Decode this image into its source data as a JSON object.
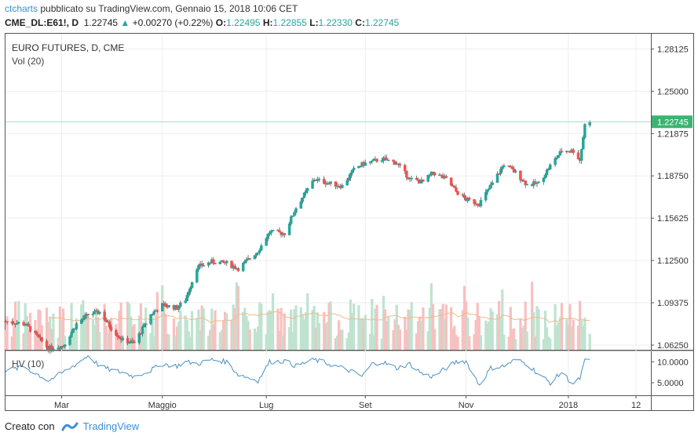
{
  "header": {
    "author": "ctcharts",
    "published": "pubblicato su TradingView.com, Gennaio 15, 2018 10:06 CET",
    "symbol": "CME_DL:E61!, D",
    "last": "1.22745",
    "change_arrow": "▲",
    "change": "+0.00270 (+0.22%)",
    "o_label": "O:",
    "o_value": "1.22495",
    "h_label": "H:",
    "h_value": "1.22855",
    "l_label": "L:",
    "l_value": "1.22330",
    "c_label": "C:",
    "c_value": "1.22745"
  },
  "legend": {
    "title": "EURO FUTURES, D, CME",
    "volume": "Vol (20)",
    "hv": "HV (10)"
  },
  "footer": {
    "created_with": "Creato con",
    "brand": "TradingView"
  },
  "colors": {
    "up": "#26a69a",
    "down": "#ef5350",
    "up_vol": "#bfe3cf",
    "down_vol": "#f8c0c0",
    "ma": "#f0b98a",
    "hv": "#4a90c0",
    "last_price_bg": "#3cb371",
    "grid": "#eeeeee"
  },
  "chart_data": {
    "type": "candlestick",
    "price_axis": {
      "min": 1.059,
      "max": 1.2925,
      "ticks": [
        "1.28125",
        "1.25000",
        "1.21875",
        "1.18750",
        "1.15625",
        "1.12500",
        "1.09375",
        "1.06250"
      ],
      "last_label": "1.22745"
    },
    "time_axis": {
      "labels": [
        {
          "text": "Mar",
          "date": "2017-03-01"
        },
        {
          "text": "Maggio",
          "date": "2017-05-01"
        },
        {
          "text": "Lug",
          "date": "2017-07-03"
        },
        {
          "text": "Set",
          "date": "2017-09-01"
        },
        {
          "text": "Nov",
          "date": "2017-11-01"
        },
        {
          "text": "2018",
          "date": "2018-01-02"
        },
        {
          "text": "12",
          "date": "2018-02-12"
        }
      ],
      "start": "2017-01-26",
      "end": "2018-02-21"
    },
    "price_path": [
      [
        "2017-01-26",
        1.08
      ],
      [
        "2017-02-07",
        1.078
      ],
      [
        "2017-02-21",
        1.06
      ],
      [
        "2017-03-02",
        1.062
      ],
      [
        "2017-03-10",
        1.078
      ],
      [
        "2017-03-17",
        1.085
      ],
      [
        "2017-03-24",
        1.087
      ],
      [
        "2017-03-31",
        1.075
      ],
      [
        "2017-04-07",
        1.066
      ],
      [
        "2017-04-14",
        1.064
      ],
      [
        "2017-04-24",
        1.085
      ],
      [
        "2017-05-01",
        1.092
      ],
      [
        "2017-05-10",
        1.09
      ],
      [
        "2017-05-15",
        1.096
      ],
      [
        "2017-05-22",
        1.12
      ],
      [
        "2017-05-31",
        1.124
      ],
      [
        "2017-06-09",
        1.123
      ],
      [
        "2017-06-16",
        1.119
      ],
      [
        "2017-06-28",
        1.132
      ],
      [
        "2017-07-05",
        1.146
      ],
      [
        "2017-07-14",
        1.145
      ],
      [
        "2017-07-21",
        1.164
      ],
      [
        "2017-08-01",
        1.185
      ],
      [
        "2017-08-10",
        1.182
      ],
      [
        "2017-08-18",
        1.18
      ],
      [
        "2017-08-25",
        1.192
      ],
      [
        "2017-08-30",
        1.196
      ],
      [
        "2017-09-05",
        1.198
      ],
      [
        "2017-09-11",
        1.2
      ],
      [
        "2017-09-20",
        1.197
      ],
      [
        "2017-09-28",
        1.185
      ],
      [
        "2017-10-06",
        1.183
      ],
      [
        "2017-10-12",
        1.19
      ],
      [
        "2017-10-20",
        1.185
      ],
      [
        "2017-10-26",
        1.176
      ],
      [
        "2017-11-01",
        1.17
      ],
      [
        "2017-11-09",
        1.167
      ],
      [
        "2017-11-16",
        1.18
      ],
      [
        "2017-11-24",
        1.196
      ],
      [
        "2017-12-01",
        1.19
      ],
      [
        "2017-12-08",
        1.181
      ],
      [
        "2017-12-15",
        1.182
      ],
      [
        "2017-12-22",
        1.195
      ],
      [
        "2017-12-29",
        1.206
      ],
      [
        "2018-01-05",
        1.206
      ],
      [
        "2018-01-09",
        1.199
      ],
      [
        "2018-01-12",
        1.225
      ],
      [
        "2018-01-15",
        1.22745
      ]
    ],
    "ohlc_last": {
      "open": 1.22495,
      "high": 1.22855,
      "low": 1.2233,
      "close": 1.22745
    },
    "volume_axis": {
      "max": 100,
      "ma_period": 20
    },
    "hv": {
      "ticks": [
        "10.0000",
        "5.0000"
      ],
      "min": 2.0,
      "max": 12.5,
      "path": [
        [
          "2017-01-26",
          8.0
        ],
        [
          "2017-02-07",
          8.7
        ],
        [
          "2017-02-21",
          5.5
        ],
        [
          "2017-03-02",
          7.5
        ],
        [
          "2017-03-10",
          9.5
        ],
        [
          "2017-03-17",
          11.5
        ],
        [
          "2017-03-24",
          9.0
        ],
        [
          "2017-03-31",
          8.0
        ],
        [
          "2017-04-07",
          7.5
        ],
        [
          "2017-04-14",
          6.5
        ],
        [
          "2017-04-24",
          8.0
        ],
        [
          "2017-05-01",
          9.5
        ],
        [
          "2017-05-10",
          9.0
        ],
        [
          "2017-05-15",
          10.0
        ],
        [
          "2017-05-22",
          9.5
        ],
        [
          "2017-05-31",
          10.5
        ],
        [
          "2017-06-09",
          10.0
        ],
        [
          "2017-06-16",
          7.0
        ],
        [
          "2017-06-28",
          5.5
        ],
        [
          "2017-07-05",
          10.0
        ],
        [
          "2017-07-14",
          10.2
        ],
        [
          "2017-07-21",
          9.0
        ],
        [
          "2017-08-01",
          10.5
        ],
        [
          "2017-08-10",
          9.5
        ],
        [
          "2017-08-18",
          8.5
        ],
        [
          "2017-08-25",
          7.5
        ],
        [
          "2017-08-30",
          6.5
        ],
        [
          "2017-09-05",
          9.5
        ],
        [
          "2017-09-11",
          10.0
        ],
        [
          "2017-09-20",
          8.5
        ],
        [
          "2017-09-28",
          9.5
        ],
        [
          "2017-10-06",
          7.0
        ],
        [
          "2017-10-12",
          6.5
        ],
        [
          "2017-10-20",
          8.5
        ],
        [
          "2017-10-26",
          10.0
        ],
        [
          "2017-11-01",
          10.2
        ],
        [
          "2017-11-09",
          4.5
        ],
        [
          "2017-11-16",
          8.5
        ],
        [
          "2017-11-24",
          9.0
        ],
        [
          "2017-12-01",
          10.5
        ],
        [
          "2017-12-08",
          9.5
        ],
        [
          "2017-12-15",
          7.0
        ],
        [
          "2017-12-22",
          5.0
        ],
        [
          "2017-12-29",
          7.5
        ],
        [
          "2018-01-05",
          4.5
        ],
        [
          "2018-01-09",
          6.0
        ],
        [
          "2018-01-12",
          10.2
        ],
        [
          "2018-01-15",
          10.3
        ]
      ]
    }
  }
}
